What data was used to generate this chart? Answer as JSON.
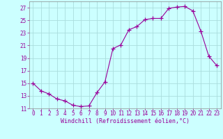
{
  "x": [
    0,
    1,
    2,
    3,
    4,
    5,
    6,
    7,
    8,
    9,
    10,
    11,
    12,
    13,
    14,
    15,
    16,
    17,
    18,
    19,
    20,
    21,
    22,
    23
  ],
  "y": [
    15.0,
    13.8,
    13.3,
    12.5,
    12.2,
    11.5,
    11.3,
    11.4,
    13.5,
    15.2,
    20.5,
    21.1,
    23.5,
    24.0,
    25.1,
    25.3,
    25.3,
    26.9,
    27.1,
    27.2,
    26.5,
    23.3,
    19.3,
    17.8
  ],
  "line_color": "#990099",
  "marker": "+",
  "marker_size": 4,
  "bg_color": "#ccffff",
  "grid_color": "#aadddd",
  "xlabel": "Windchill (Refroidissement éolien,°C)",
  "xlabel_color": "#990099",
  "tick_color": "#990099",
  "ylim": [
    11,
    28
  ],
  "xlim": [
    -0.5,
    23.5
  ],
  "yticks": [
    11,
    13,
    15,
    17,
    19,
    21,
    23,
    25,
    27
  ],
  "xticks": [
    0,
    1,
    2,
    3,
    4,
    5,
    6,
    7,
    8,
    9,
    10,
    11,
    12,
    13,
    14,
    15,
    16,
    17,
    18,
    19,
    20,
    21,
    22,
    23
  ],
  "font_family": "monospace",
  "tick_fontsize": 5.5,
  "xlabel_fontsize": 6.0
}
